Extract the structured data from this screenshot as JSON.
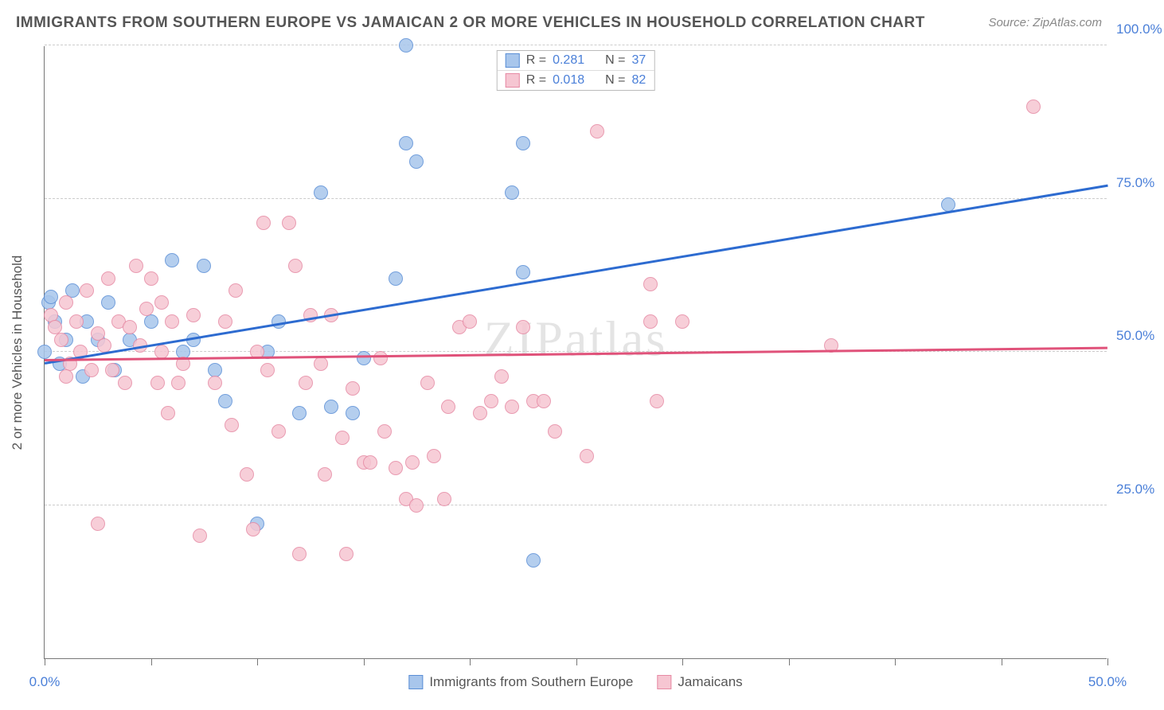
{
  "title": "IMMIGRANTS FROM SOUTHERN EUROPE VS JAMAICAN 2 OR MORE VEHICLES IN HOUSEHOLD CORRELATION CHART",
  "source": "Source: ZipAtlas.com",
  "watermark": "ZIPatlas",
  "y_axis_label": "2 or more Vehicles in Household",
  "chart": {
    "type": "scatter",
    "xlim": [
      0,
      50
    ],
    "ylim": [
      0,
      100
    ],
    "x_ticks": [
      0,
      5,
      10,
      15,
      20,
      25,
      30,
      35,
      40,
      45,
      50
    ],
    "x_tick_labels": {
      "0": "0.0%",
      "50": "50.0%"
    },
    "y_ticks": [
      25,
      50,
      75,
      100
    ],
    "y_tick_labels": {
      "25": "25.0%",
      "50": "50.0%",
      "75": "75.0%",
      "100": "100.0%"
    },
    "grid_color": "#cccccc",
    "background_color": "#ffffff",
    "axis_color": "#777777",
    "point_radius": 9,
    "point_stroke_width": 1.5,
    "point_fill_opacity": 0.35
  },
  "series": [
    {
      "name": "Immigrants from Southern Europe",
      "short": "blue",
      "fill": "#a8c6ec",
      "stroke": "#5b8fd6",
      "line_color": "#2d6bd0",
      "R": "0.281",
      "N": "37",
      "trend": {
        "x1": 0,
        "y1": 48,
        "x2": 50,
        "y2": 77
      },
      "points": [
        [
          0.2,
          58
        ],
        [
          0.0,
          50
        ],
        [
          0.5,
          55
        ],
        [
          0.7,
          48
        ],
        [
          1.0,
          52
        ],
        [
          1.3,
          60
        ],
        [
          1.8,
          46
        ],
        [
          2.0,
          55
        ],
        [
          2.5,
          52
        ],
        [
          3.0,
          58
        ],
        [
          3.3,
          47
        ],
        [
          4.0,
          52
        ],
        [
          5.0,
          55
        ],
        [
          6.0,
          65
        ],
        [
          6.5,
          50
        ],
        [
          7.0,
          52
        ],
        [
          7.5,
          64
        ],
        [
          8.0,
          47
        ],
        [
          8.5,
          42
        ],
        [
          10.0,
          22
        ],
        [
          10.5,
          50
        ],
        [
          11.0,
          55
        ],
        [
          12.0,
          40
        ],
        [
          13.0,
          76
        ],
        [
          13.5,
          41
        ],
        [
          14.5,
          40
        ],
        [
          15.0,
          49
        ],
        [
          16.5,
          62
        ],
        [
          17.0,
          84
        ],
        [
          17.0,
          100
        ],
        [
          17.5,
          81
        ],
        [
          22.0,
          76
        ],
        [
          22.5,
          63
        ],
        [
          22.5,
          84
        ],
        [
          23.0,
          16
        ],
        [
          42.5,
          74
        ],
        [
          0.3,
          59
        ]
      ]
    },
    {
      "name": "Jamaicans",
      "short": "pink",
      "fill": "#f6c6d2",
      "stroke": "#e68aa4",
      "line_color": "#e0527a",
      "R": "0.018",
      "N": "82",
      "trend": {
        "x1": 0,
        "y1": 48.5,
        "x2": 50,
        "y2": 50.5
      },
      "points": [
        [
          0.3,
          56
        ],
        [
          0.5,
          54
        ],
        [
          0.8,
          52
        ],
        [
          1.0,
          58
        ],
        [
          1.2,
          48
        ],
        [
          1.5,
          55
        ],
        [
          1.7,
          50
        ],
        [
          2.0,
          60
        ],
        [
          2.2,
          47
        ],
        [
          2.5,
          53
        ],
        [
          2.8,
          51
        ],
        [
          3.0,
          62
        ],
        [
          3.2,
          47
        ],
        [
          3.5,
          55
        ],
        [
          3.8,
          45
        ],
        [
          4.0,
          54
        ],
        [
          4.3,
          64
        ],
        [
          4.5,
          51
        ],
        [
          4.8,
          57
        ],
        [
          5.0,
          62
        ],
        [
          5.3,
          45
        ],
        [
          5.5,
          50
        ],
        [
          5.8,
          40
        ],
        [
          6.0,
          55
        ],
        [
          6.3,
          45
        ],
        [
          6.5,
          48
        ],
        [
          7.0,
          56
        ],
        [
          7.3,
          20
        ],
        [
          8.0,
          45
        ],
        [
          8.5,
          55
        ],
        [
          8.8,
          38
        ],
        [
          9.0,
          60
        ],
        [
          9.5,
          30
        ],
        [
          9.8,
          21
        ],
        [
          10.0,
          50
        ],
        [
          10.3,
          71
        ],
        [
          10.5,
          47
        ],
        [
          11.0,
          37
        ],
        [
          11.5,
          71
        ],
        [
          11.8,
          64
        ],
        [
          12.0,
          17
        ],
        [
          12.3,
          45
        ],
        [
          12.5,
          56
        ],
        [
          13.0,
          48
        ],
        [
          13.2,
          30
        ],
        [
          13.5,
          56
        ],
        [
          14.0,
          36
        ],
        [
          14.2,
          17
        ],
        [
          14.5,
          44
        ],
        [
          15.0,
          32
        ],
        [
          15.3,
          32
        ],
        [
          15.8,
          49
        ],
        [
          16.0,
          37
        ],
        [
          16.5,
          31
        ],
        [
          17.0,
          26
        ],
        [
          17.3,
          32
        ],
        [
          17.5,
          25
        ],
        [
          18.0,
          45
        ],
        [
          18.3,
          33
        ],
        [
          18.8,
          26
        ],
        [
          19.0,
          41
        ],
        [
          19.5,
          54
        ],
        [
          20.0,
          55
        ],
        [
          20.5,
          40
        ],
        [
          21.0,
          42
        ],
        [
          21.5,
          46
        ],
        [
          22.0,
          41
        ],
        [
          22.5,
          54
        ],
        [
          23.0,
          42
        ],
        [
          23.5,
          42
        ],
        [
          24.0,
          37
        ],
        [
          25.5,
          33
        ],
        [
          26.0,
          86
        ],
        [
          28.5,
          61
        ],
        [
          28.5,
          55
        ],
        [
          28.8,
          42
        ],
        [
          30.0,
          55
        ],
        [
          37.0,
          51
        ],
        [
          46.5,
          90
        ],
        [
          2.5,
          22
        ],
        [
          5.5,
          58
        ],
        [
          1.0,
          46
        ]
      ]
    }
  ],
  "legend_top": {
    "r_label": "R =",
    "n_label": "N ="
  },
  "legend_bottom": [
    {
      "swatch": 0,
      "label": "Immigrants from Southern Europe"
    },
    {
      "swatch": 1,
      "label": "Jamaicans"
    }
  ]
}
